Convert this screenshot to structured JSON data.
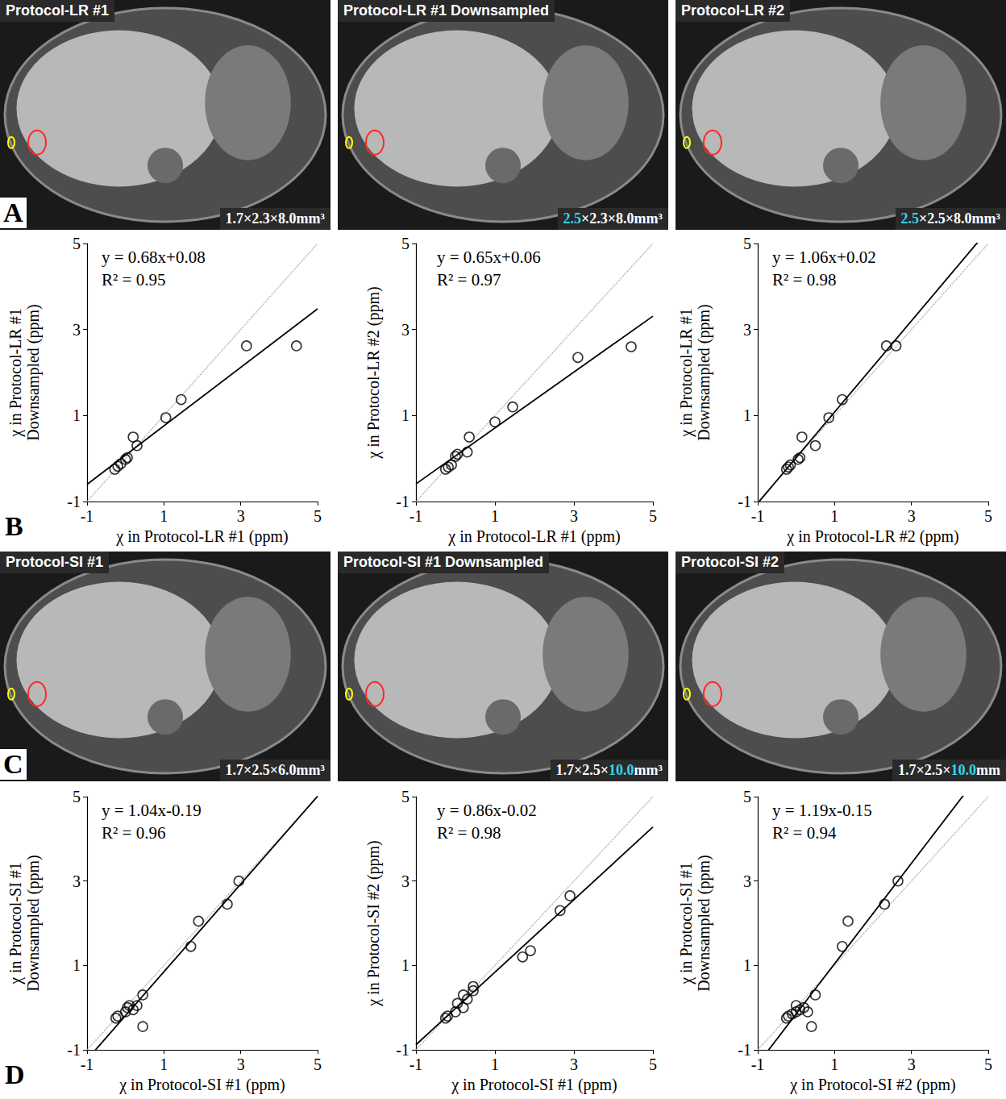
{
  "chart_data": [
    {
      "type": "scatter",
      "xlabel": "χ in Protocol-LR #1 (ppm)",
      "ylabel": "χ in Protocol-LR #1\nDownsampled (ppm)",
      "annotations": [
        "y = 0.68x+0.08",
        "R² = 0.95"
      ],
      "xlim": [
        -1,
        5
      ],
      "xticks": [
        -1,
        1,
        3,
        5
      ],
      "ylim": [
        -1,
        5
      ],
      "yticks": [
        -1,
        1,
        3,
        5
      ],
      "grid": false,
      "series": [
        {
          "type": "line",
          "line_style": "dotted",
          "color": "#a0a0a0",
          "x": [
            -1,
            5
          ],
          "values": [
            -1,
            5
          ]
        },
        {
          "type": "line",
          "line_style": "solid",
          "color": "#000000",
          "slope": 0.68,
          "intercept": 0.08
        },
        {
          "type": "scatter",
          "marker": "circle",
          "color": "#000000",
          "x": [
            -0.28,
            -0.2,
            -0.12,
            0.0,
            0.05,
            0.2,
            0.3,
            1.05,
            1.45,
            3.15,
            4.45
          ],
          "values": [
            -0.25,
            -0.18,
            -0.12,
            -0.02,
            0.02,
            0.5,
            0.3,
            0.95,
            1.37,
            2.62,
            2.62
          ]
        }
      ]
    },
    {
      "type": "scatter",
      "xlabel": "χ in Protocol-LR #1 (ppm)",
      "ylabel": "χ in Protocol-LR #2 (ppm)",
      "annotations": [
        "y = 0.65x+0.06",
        "R² = 0.97"
      ],
      "xlim": [
        -1,
        5
      ],
      "xticks": [
        -1,
        1,
        3,
        5
      ],
      "ylim": [
        -1,
        5
      ],
      "yticks": [
        -1,
        1,
        3,
        5
      ],
      "grid": false,
      "series": [
        {
          "type": "line",
          "line_style": "dotted",
          "color": "#a0a0a0",
          "x": [
            -1,
            5
          ],
          "values": [
            -1,
            5
          ]
        },
        {
          "type": "line",
          "line_style": "solid",
          "color": "#000000",
          "slope": 0.65,
          "intercept": 0.06
        },
        {
          "type": "scatter",
          "marker": "circle",
          "color": "#000000",
          "x": [
            -0.25,
            -0.18,
            -0.1,
            0.0,
            0.05,
            0.3,
            0.35,
            1.0,
            1.45,
            3.1,
            4.45
          ],
          "values": [
            -0.25,
            -0.2,
            -0.15,
            0.05,
            0.1,
            0.15,
            0.5,
            0.85,
            1.2,
            2.35,
            2.6
          ]
        }
      ]
    },
    {
      "type": "scatter",
      "xlabel": "χ in Protocol-LR #2 (ppm)",
      "ylabel": "χ in Protocol-LR #1\nDownsampled (ppm)",
      "annotations": [
        "y = 1.06x+0.02",
        "R² = 0.98"
      ],
      "xlim": [
        -1,
        5
      ],
      "xticks": [
        -1,
        1,
        3,
        5
      ],
      "ylim": [
        -1,
        5
      ],
      "yticks": [
        -1,
        1,
        3,
        5
      ],
      "grid": false,
      "series": [
        {
          "type": "line",
          "line_style": "dotted",
          "color": "#a0a0a0",
          "x": [
            -1,
            5
          ],
          "values": [
            -1,
            5
          ]
        },
        {
          "type": "line",
          "line_style": "solid",
          "color": "#000000",
          "slope": 1.06,
          "intercept": 0.02
        },
        {
          "type": "scatter",
          "marker": "circle",
          "color": "#000000",
          "x": [
            -0.25,
            -0.2,
            -0.15,
            0.05,
            0.1,
            0.15,
            0.5,
            0.85,
            1.2,
            2.35,
            2.6
          ],
          "values": [
            -0.25,
            -0.2,
            -0.15,
            -0.02,
            0.02,
            0.5,
            0.3,
            0.95,
            1.37,
            2.62,
            2.62
          ]
        }
      ]
    },
    {
      "type": "scatter",
      "xlabel": "χ in Protocol-SI #1 (ppm)",
      "ylabel": "χ in Protocol-SI #1\nDownsampled (ppm)",
      "annotations": [
        "y = 1.04x-0.19",
        "R² = 0.96"
      ],
      "xlim": [
        -1,
        5
      ],
      "xticks": [
        -1,
        1,
        3,
        5
      ],
      "ylim": [
        -1,
        5
      ],
      "yticks": [
        -1,
        1,
        3,
        5
      ],
      "grid": false,
      "series": [
        {
          "type": "line",
          "line_style": "dotted",
          "color": "#a0a0a0",
          "x": [
            -1,
            5
          ],
          "values": [
            -1,
            5
          ]
        },
        {
          "type": "line",
          "line_style": "solid",
          "color": "#000000",
          "slope": 1.04,
          "intercept": -0.19
        },
        {
          "type": "scatter",
          "marker": "circle",
          "color": "#000000",
          "x": [
            -0.25,
            -0.2,
            0.0,
            0.05,
            0.1,
            0.2,
            0.3,
            0.45,
            0.45,
            1.7,
            1.9,
            2.65,
            2.95
          ],
          "values": [
            -0.25,
            -0.2,
            -0.1,
            0.0,
            0.05,
            -0.05,
            0.05,
            0.3,
            -0.45,
            1.45,
            2.05,
            2.45,
            3.0
          ]
        }
      ]
    },
    {
      "type": "scatter",
      "xlabel": "χ in Protocol-SI #1 (ppm)",
      "ylabel": "χ in Protocol-SI #2 (ppm)",
      "annotations": [
        "y = 0.86x-0.02",
        "R² = 0.98"
      ],
      "xlim": [
        -1,
        5
      ],
      "xticks": [
        -1,
        1,
        3,
        5
      ],
      "ylim": [
        -1,
        5
      ],
      "yticks": [
        -1,
        1,
        3,
        5
      ],
      "grid": false,
      "series": [
        {
          "type": "line",
          "line_style": "dotted",
          "color": "#a0a0a0",
          "x": [
            -1,
            5
          ],
          "values": [
            -1,
            5
          ]
        },
        {
          "type": "line",
          "line_style": "solid",
          "color": "#000000",
          "slope": 0.86,
          "intercept": -0.02
        },
        {
          "type": "scatter",
          "marker": "circle",
          "color": "#000000",
          "x": [
            -0.25,
            -0.2,
            0.0,
            0.05,
            0.2,
            0.2,
            0.3,
            0.45,
            0.45,
            1.7,
            1.9,
            2.65,
            2.9
          ],
          "values": [
            -0.25,
            -0.2,
            -0.1,
            0.1,
            0.0,
            0.3,
            0.2,
            0.4,
            0.5,
            1.2,
            1.35,
            2.3,
            2.65
          ]
        }
      ]
    },
    {
      "type": "scatter",
      "xlabel": "χ in Protocol-SI #2 (ppm)",
      "ylabel": "χ in Protocol-SI #1\nDownsampled (ppm)",
      "annotations": [
        "y = 1.19x-0.15",
        "R² = 0.94"
      ],
      "xlim": [
        -1,
        5
      ],
      "xticks": [
        -1,
        1,
        3,
        5
      ],
      "ylim": [
        -1,
        5
      ],
      "yticks": [
        -1,
        1,
        3,
        5
      ],
      "grid": false,
      "series": [
        {
          "type": "line",
          "line_style": "dotted",
          "color": "#a0a0a0",
          "x": [
            -1,
            5
          ],
          "values": [
            -1,
            5
          ]
        },
        {
          "type": "line",
          "line_style": "solid",
          "color": "#000000",
          "slope": 1.19,
          "intercept": -0.15
        },
        {
          "type": "scatter",
          "marker": "circle",
          "color": "#000000",
          "x": [
            -0.25,
            -0.2,
            -0.1,
            0.0,
            0.0,
            0.1,
            0.2,
            0.3,
            0.5,
            0.4,
            1.2,
            1.35,
            2.3,
            2.65
          ],
          "values": [
            -0.25,
            -0.2,
            -0.15,
            0.05,
            -0.1,
            -0.05,
            0.0,
            -0.1,
            0.3,
            -0.45,
            1.45,
            2.05,
            2.45,
            3.0
          ]
        }
      ]
    }
  ],
  "image_panels": [
    {
      "letter": "A",
      "images": [
        {
          "title": "Protocol-LR #1",
          "resolution": [
            {
              "text": "1.7×2.3×8.0mm³"
            }
          ]
        },
        {
          "title": "Protocol-LR #1 Downsampled",
          "resolution": [
            {
              "text": "2.5",
              "color": "#33d6e8"
            },
            {
              "text": "×2.3×8.0mm³"
            }
          ]
        },
        {
          "title": "Protocol-LR #2",
          "resolution": [
            {
              "text": "2.5",
              "color": "#33d6e8"
            },
            {
              "text": "×2.5×8.0mm³"
            }
          ]
        }
      ]
    },
    {
      "letter": "C",
      "images": [
        {
          "title": "Protocol-SI #1",
          "resolution": [
            {
              "text": "1.7×2.5×6.0mm³"
            }
          ]
        },
        {
          "title": "Protocol-SI #1 Downsampled",
          "resolution": [
            {
              "text": "1.7×2.5×"
            },
            {
              "text": "10.0",
              "color": "#33d6e8"
            },
            {
              "text": "mm³"
            }
          ]
        },
        {
          "title": "Protocol-SI #2",
          "resolution": [
            {
              "text": "1.7×2.5×"
            },
            {
              "text": "10.0",
              "color": "#33d6e8"
            },
            {
              "text": "mm"
            }
          ]
        }
      ]
    }
  ],
  "plot_letters": [
    "B",
    "D"
  ]
}
